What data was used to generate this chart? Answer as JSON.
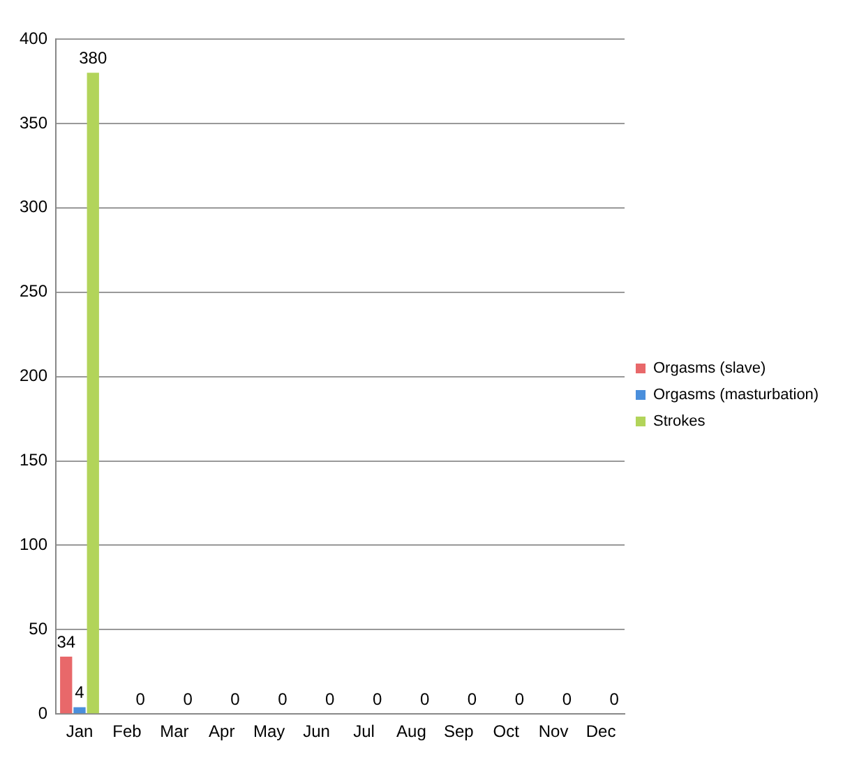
{
  "chart_data": {
    "type": "bar",
    "categories": [
      "Jan",
      "Feb",
      "Mar",
      "Apr",
      "May",
      "Jun",
      "Jul",
      "Aug",
      "Sep",
      "Oct",
      "Nov",
      "Dec"
    ],
    "series": [
      {
        "name": "Orgasms (slave)",
        "color": "#e8686a",
        "values": [
          34,
          0,
          0,
          0,
          0,
          0,
          0,
          0,
          0,
          0,
          0,
          0
        ],
        "value_labels": [
          "34",
          null,
          null,
          null,
          null,
          null,
          null,
          null,
          null,
          null,
          null,
          null
        ]
      },
      {
        "name": "Orgasms (masturbation)",
        "color": "#4a8fdc",
        "values": [
          4,
          0,
          0,
          0,
          0,
          0,
          0,
          0,
          0,
          0,
          0,
          0
        ],
        "value_labels": [
          "4",
          null,
          null,
          null,
          null,
          null,
          null,
          null,
          null,
          null,
          null,
          null
        ]
      },
      {
        "name": "Strokes",
        "color": "#b2d45a",
        "values": [
          380,
          0,
          0,
          0,
          0,
          0,
          0,
          0,
          0,
          0,
          0,
          0
        ],
        "value_labels": [
          "380",
          "0",
          "0",
          "0",
          "0",
          "0",
          "0",
          "0",
          "0",
          "0",
          "0",
          "0"
        ]
      }
    ],
    "ylim": [
      0,
      400
    ],
    "yticks": [
      0,
      50,
      100,
      150,
      200,
      250,
      300,
      350,
      400
    ],
    "grid": "y",
    "legend": "right"
  }
}
